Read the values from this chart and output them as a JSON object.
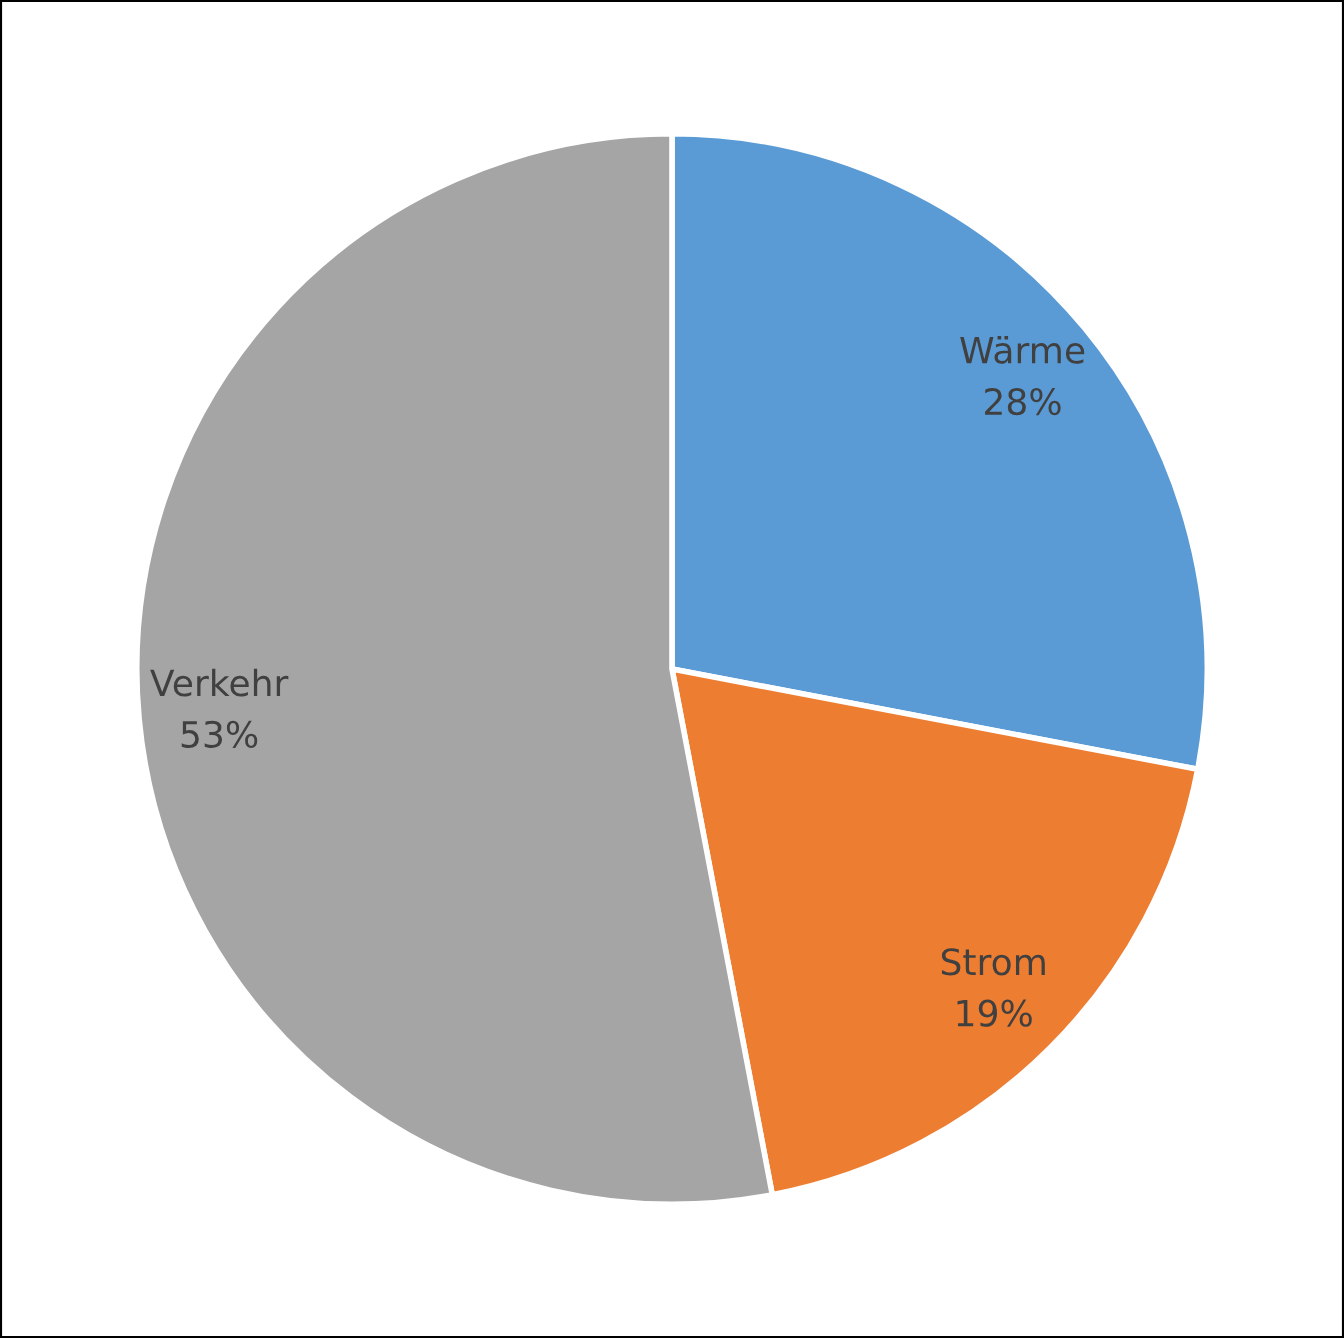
{
  "chart_data": {
    "type": "pie",
    "categories": [
      "Wärme",
      "Strom",
      "Verkehr"
    ],
    "values": [
      28,
      19,
      53
    ],
    "colors": [
      "#5b9bd5",
      "#ed7d31",
      "#a5a5a5"
    ],
    "value_labels": [
      "28%",
      "19%",
      "53%"
    ]
  }
}
